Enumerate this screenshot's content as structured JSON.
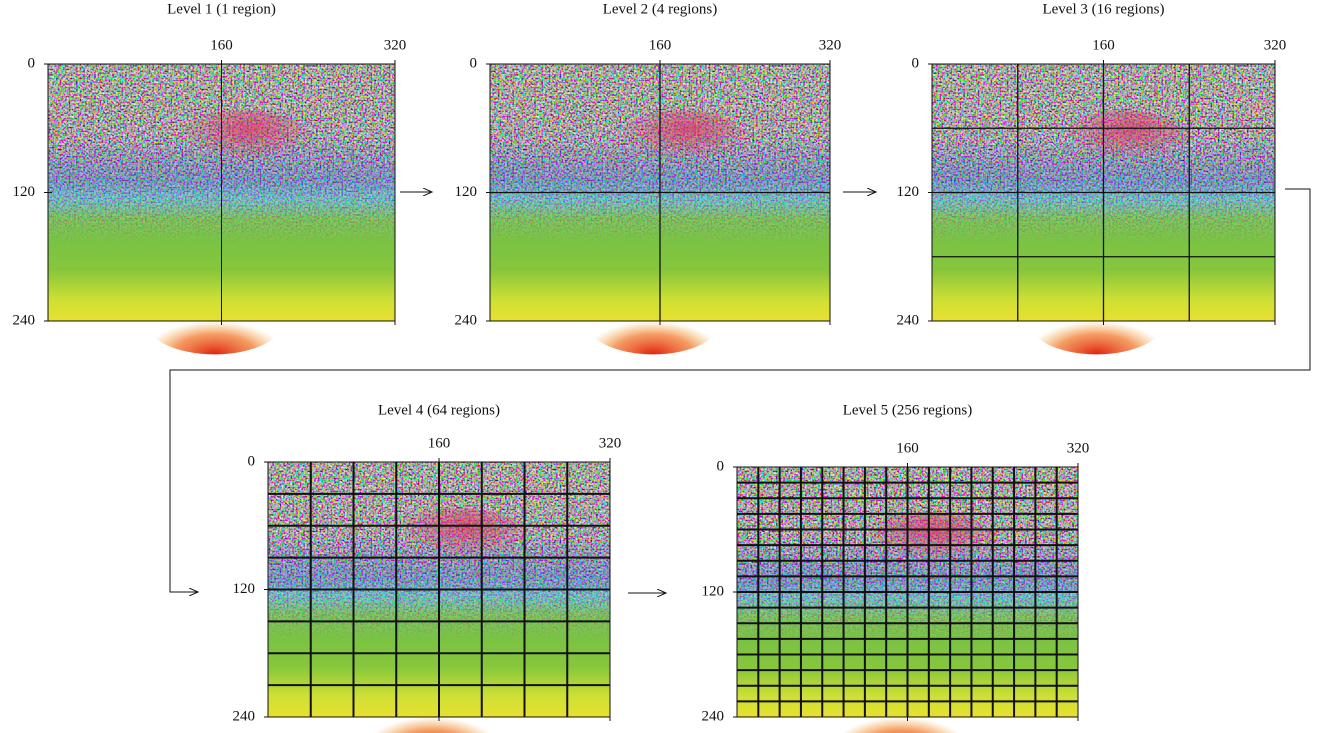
{
  "panels": [
    {
      "title": "Level 1 (1 region)",
      "x_ticks": [
        160,
        320
      ],
      "y_ticks": [
        0,
        120,
        240
      ]
    },
    {
      "title": "Level 2 (4 regions)",
      "x_ticks": [
        160,
        320
      ],
      "y_ticks": [
        0,
        120,
        240
      ]
    },
    {
      "title": "Level 3 (16 regions)",
      "x_ticks": [
        160,
        320
      ],
      "y_ticks": [
        0,
        120,
        240
      ]
    },
    {
      "title": "Level 4 (64 regions)",
      "x_ticks": [
        160,
        320
      ],
      "y_ticks": [
        0,
        120,
        240
      ]
    },
    {
      "title": "Level 5 (256 regions)",
      "x_ticks": [
        160,
        320
      ],
      "y_ticks": [
        0,
        120,
        240
      ]
    }
  ]
}
